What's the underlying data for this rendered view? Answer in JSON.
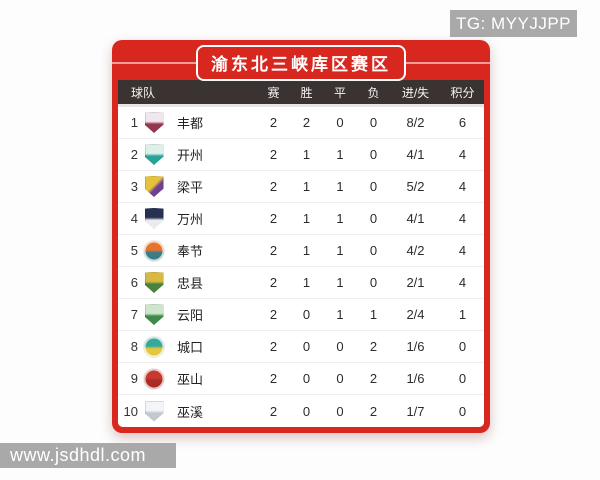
{
  "watermarks": {
    "top": "TG: MYYJJPP",
    "bottom": "www.jsdhdl.com"
  },
  "card": {
    "title": "渝东北三峡库区赛区"
  },
  "table": {
    "columns": [
      "球队",
      "赛",
      "胜",
      "平",
      "负",
      "进/失",
      "积分"
    ],
    "rows": [
      {
        "rank": "1",
        "team": "丰都",
        "played": "2",
        "won": "2",
        "drawn": "0",
        "lost": "0",
        "goals": "8/2",
        "points": "6",
        "badge": {
          "name": "fengdu-crest-icon",
          "shape": "shield",
          "colors": [
            "#f0e8ee",
            "#93374f"
          ]
        }
      },
      {
        "rank": "2",
        "team": "开州",
        "played": "2",
        "won": "1",
        "drawn": "1",
        "lost": "0",
        "goals": "4/1",
        "points": "4",
        "badge": {
          "name": "kaizhou-crest-icon",
          "shape": "shield",
          "colors": [
            "#ddf0e9",
            "#2aa397"
          ]
        }
      },
      {
        "rank": "3",
        "team": "梁平",
        "played": "2",
        "won": "1",
        "drawn": "1",
        "lost": "0",
        "goals": "5/2",
        "points": "4",
        "badge": {
          "name": "liangping-crest-icon",
          "shape": "shield",
          "colors": [
            "#e5c23a",
            "#6e4190"
          ],
          "dir": "135deg"
        }
      },
      {
        "rank": "4",
        "team": "万州",
        "played": "2",
        "won": "1",
        "drawn": "1",
        "lost": "0",
        "goals": "4/1",
        "points": "4",
        "badge": {
          "name": "wanzhou-crest-icon",
          "shape": "shield",
          "colors": [
            "#273252",
            "#e9ebf1"
          ]
        }
      },
      {
        "rank": "5",
        "team": "奉节",
        "played": "2",
        "won": "1",
        "drawn": "1",
        "lost": "0",
        "goals": "4/2",
        "points": "4",
        "badge": {
          "name": "fengjie-crest-icon",
          "shape": "circle",
          "colors": [
            "#e8732d",
            "#3a7d88"
          ]
        }
      },
      {
        "rank": "6",
        "team": "忠县",
        "played": "2",
        "won": "1",
        "drawn": "1",
        "lost": "0",
        "goals": "2/1",
        "points": "4",
        "badge": {
          "name": "zhongxian-crest-icon",
          "shape": "shield",
          "colors": [
            "#d9b93f",
            "#49823f"
          ]
        }
      },
      {
        "rank": "7",
        "team": "云阳",
        "played": "2",
        "won": "0",
        "drawn": "1",
        "lost": "1",
        "goals": "2/4",
        "points": "1",
        "badge": {
          "name": "yunyang-crest-icon",
          "shape": "shield",
          "colors": [
            "#cfe6cd",
            "#3f8a4a"
          ]
        }
      },
      {
        "rank": "8",
        "team": "城口",
        "played": "2",
        "won": "0",
        "drawn": "0",
        "lost": "2",
        "goals": "1/6",
        "points": "0",
        "badge": {
          "name": "chengkou-crest-icon",
          "shape": "circle",
          "colors": [
            "#35a99c",
            "#e3c83e"
          ]
        }
      },
      {
        "rank": "9",
        "team": "巫山",
        "played": "2",
        "won": "0",
        "drawn": "0",
        "lost": "2",
        "goals": "1/6",
        "points": "0",
        "badge": {
          "name": "wushan-crest-icon",
          "shape": "circle",
          "colors": [
            "#c63a30",
            "#a82b24"
          ]
        }
      },
      {
        "rank": "10",
        "team": "巫溪",
        "played": "2",
        "won": "0",
        "drawn": "0",
        "lost": "2",
        "goals": "1/7",
        "points": "0",
        "badge": {
          "name": "wuxi-crest-icon",
          "shape": "shield",
          "colors": [
            "#f4f5f7",
            "#c2c7d0"
          ]
        }
      }
    ]
  },
  "colors": {
    "card_red": "#d8271f",
    "header_dark": "#3a3332",
    "watermark_gray": "#a9a9a9",
    "title_line": "#ef9f97"
  }
}
